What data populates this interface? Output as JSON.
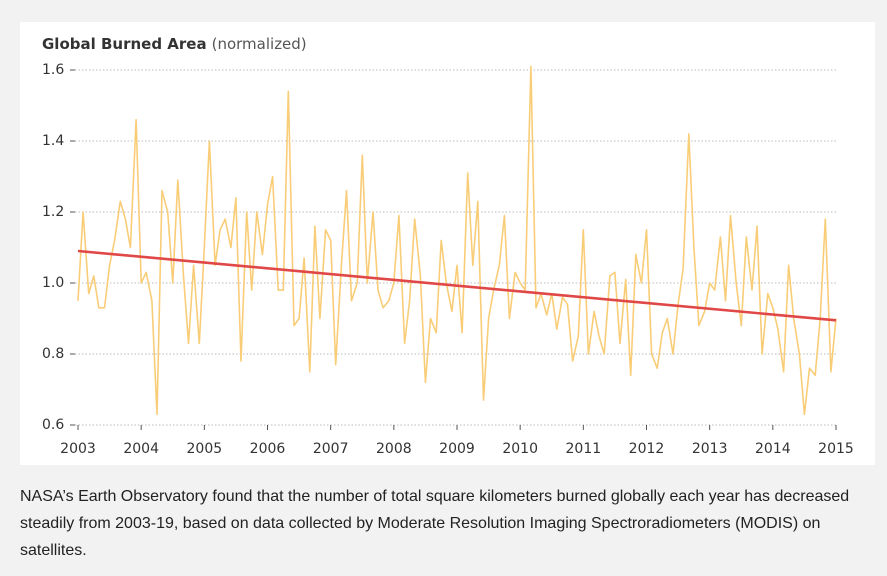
{
  "chart_data": {
    "type": "line",
    "title": "Global Burned Area",
    "subtitle": "(normalized)",
    "x": [
      2003,
      2003.08,
      2003.17,
      2003.25,
      2003.33,
      2003.42,
      2003.5,
      2003.58,
      2003.67,
      2003.75,
      2003.83,
      2003.92,
      2004,
      2004.08,
      2004.17,
      2004.25,
      2004.33,
      2004.42,
      2004.5,
      2004.58,
      2004.67,
      2004.75,
      2004.83,
      2004.92,
      2005,
      2005.08,
      2005.17,
      2005.25,
      2005.33,
      2005.42,
      2005.5,
      2005.58,
      2005.67,
      2005.75,
      2005.83,
      2005.92,
      2006,
      2006.08,
      2006.17,
      2006.25,
      2006.33,
      2006.42,
      2006.5,
      2006.58,
      2006.67,
      2006.75,
      2006.83,
      2006.92,
      2007,
      2007.08,
      2007.17,
      2007.25,
      2007.33,
      2007.42,
      2007.5,
      2007.58,
      2007.67,
      2007.75,
      2007.83,
      2007.92,
      2008,
      2008.08,
      2008.17,
      2008.25,
      2008.33,
      2008.42,
      2008.5,
      2008.58,
      2008.67,
      2008.75,
      2008.83,
      2008.92,
      2009,
      2009.08,
      2009.17,
      2009.25,
      2009.33,
      2009.42,
      2009.5,
      2009.58,
      2009.67,
      2009.75,
      2009.83,
      2009.92,
      2010,
      2010.08,
      2010.17,
      2010.25,
      2010.33,
      2010.42,
      2010.5,
      2010.58,
      2010.67,
      2010.75,
      2010.83,
      2010.92,
      2011,
      2011.08,
      2011.17,
      2011.25,
      2011.33,
      2011.42,
      2011.5,
      2011.58,
      2011.67,
      2011.75,
      2011.83,
      2011.92,
      2012,
      2012.08,
      2012.17,
      2012.25,
      2012.33,
      2012.42,
      2012.5,
      2012.58,
      2012.67,
      2012.75,
      2012.83,
      2012.92,
      2013,
      2013.08,
      2013.17,
      2013.25,
      2013.33,
      2013.42,
      2013.5,
      2013.58,
      2013.67,
      2013.75,
      2013.83,
      2013.92,
      2014,
      2014.08,
      2014.17,
      2014.25,
      2014.33,
      2014.42,
      2014.5,
      2014.58,
      2014.67,
      2014.75,
      2014.83,
      2014.92,
      2015
    ],
    "series": [
      {
        "color": "#f9cd78",
        "values": [
          0.95,
          1.2,
          0.97,
          1.02,
          0.93,
          0.93,
          1.05,
          1.12,
          1.23,
          1.18,
          1.1,
          1.46,
          1.0,
          1.03,
          0.95,
          0.63,
          1.26,
          1.2,
          1.0,
          1.29,
          1.02,
          0.83,
          1.05,
          0.83,
          1.1,
          1.4,
          1.05,
          1.15,
          1.18,
          1.1,
          1.24,
          0.78,
          1.2,
          0.98,
          1.2,
          1.08,
          1.22,
          1.3,
          0.98,
          0.98,
          1.54,
          0.88,
          0.9,
          1.07,
          0.75,
          1.16,
          0.9,
          1.15,
          1.12,
          0.77,
          1.05,
          1.26,
          0.95,
          1.0,
          1.36,
          1.0,
          1.2,
          0.98,
          0.93,
          0.95,
          1.0,
          1.19,
          0.83,
          0.95,
          1.18,
          1.02,
          0.72,
          0.9,
          0.86,
          1.12,
          1.0,
          0.92,
          1.05,
          0.86,
          1.31,
          1.05,
          1.23,
          0.67,
          0.9,
          0.98,
          1.05,
          1.19,
          0.9,
          1.03,
          1.0,
          0.98,
          1.61,
          0.93,
          0.97,
          0.91,
          0.97,
          0.87,
          0.96,
          0.94,
          0.78,
          0.85,
          1.15,
          0.8,
          0.92,
          0.85,
          0.8,
          1.02,
          1.03,
          0.83,
          1.01,
          0.74,
          1.08,
          1.0,
          1.15,
          0.8,
          0.76,
          0.86,
          0.9,
          0.8,
          0.94,
          1.04,
          1.42,
          1.1,
          0.88,
          0.92,
          1.0,
          0.98,
          1.13,
          0.95,
          1.19,
          1.0,
          0.88,
          1.13,
          0.98,
          1.16,
          0.8,
          0.97,
          0.93,
          0.87,
          0.75,
          1.05,
          0.9,
          0.8,
          0.63,
          0.76,
          0.74,
          0.9,
          1.18,
          0.75,
          0.9
        ]
      },
      {
        "color": "#e04848",
        "x": [
          2003,
          2015
        ],
        "values": [
          1.09,
          0.895
        ]
      }
    ],
    "xlim": [
      2003,
      2015
    ],
    "xticks": [
      2003,
      2004,
      2005,
      2006,
      2007,
      2008,
      2009,
      2010,
      2011,
      2012,
      2013,
      2014,
      2015
    ],
    "ylim": [
      0.6,
      1.6
    ],
    "yticks": [
      0.6,
      0.8,
      {
        "value": 1.0,
        "label": "1.0"
      },
      1.2,
      1.4,
      1.6
    ],
    "grid": true
  },
  "caption": "NASA’s Earth Observatory found that the number of total square kilometers burned globally each year has decreased steadily from 2003-19, based on data collected by Moderate Resolution Imaging Spectroradiometers (MODIS) on satellites."
}
